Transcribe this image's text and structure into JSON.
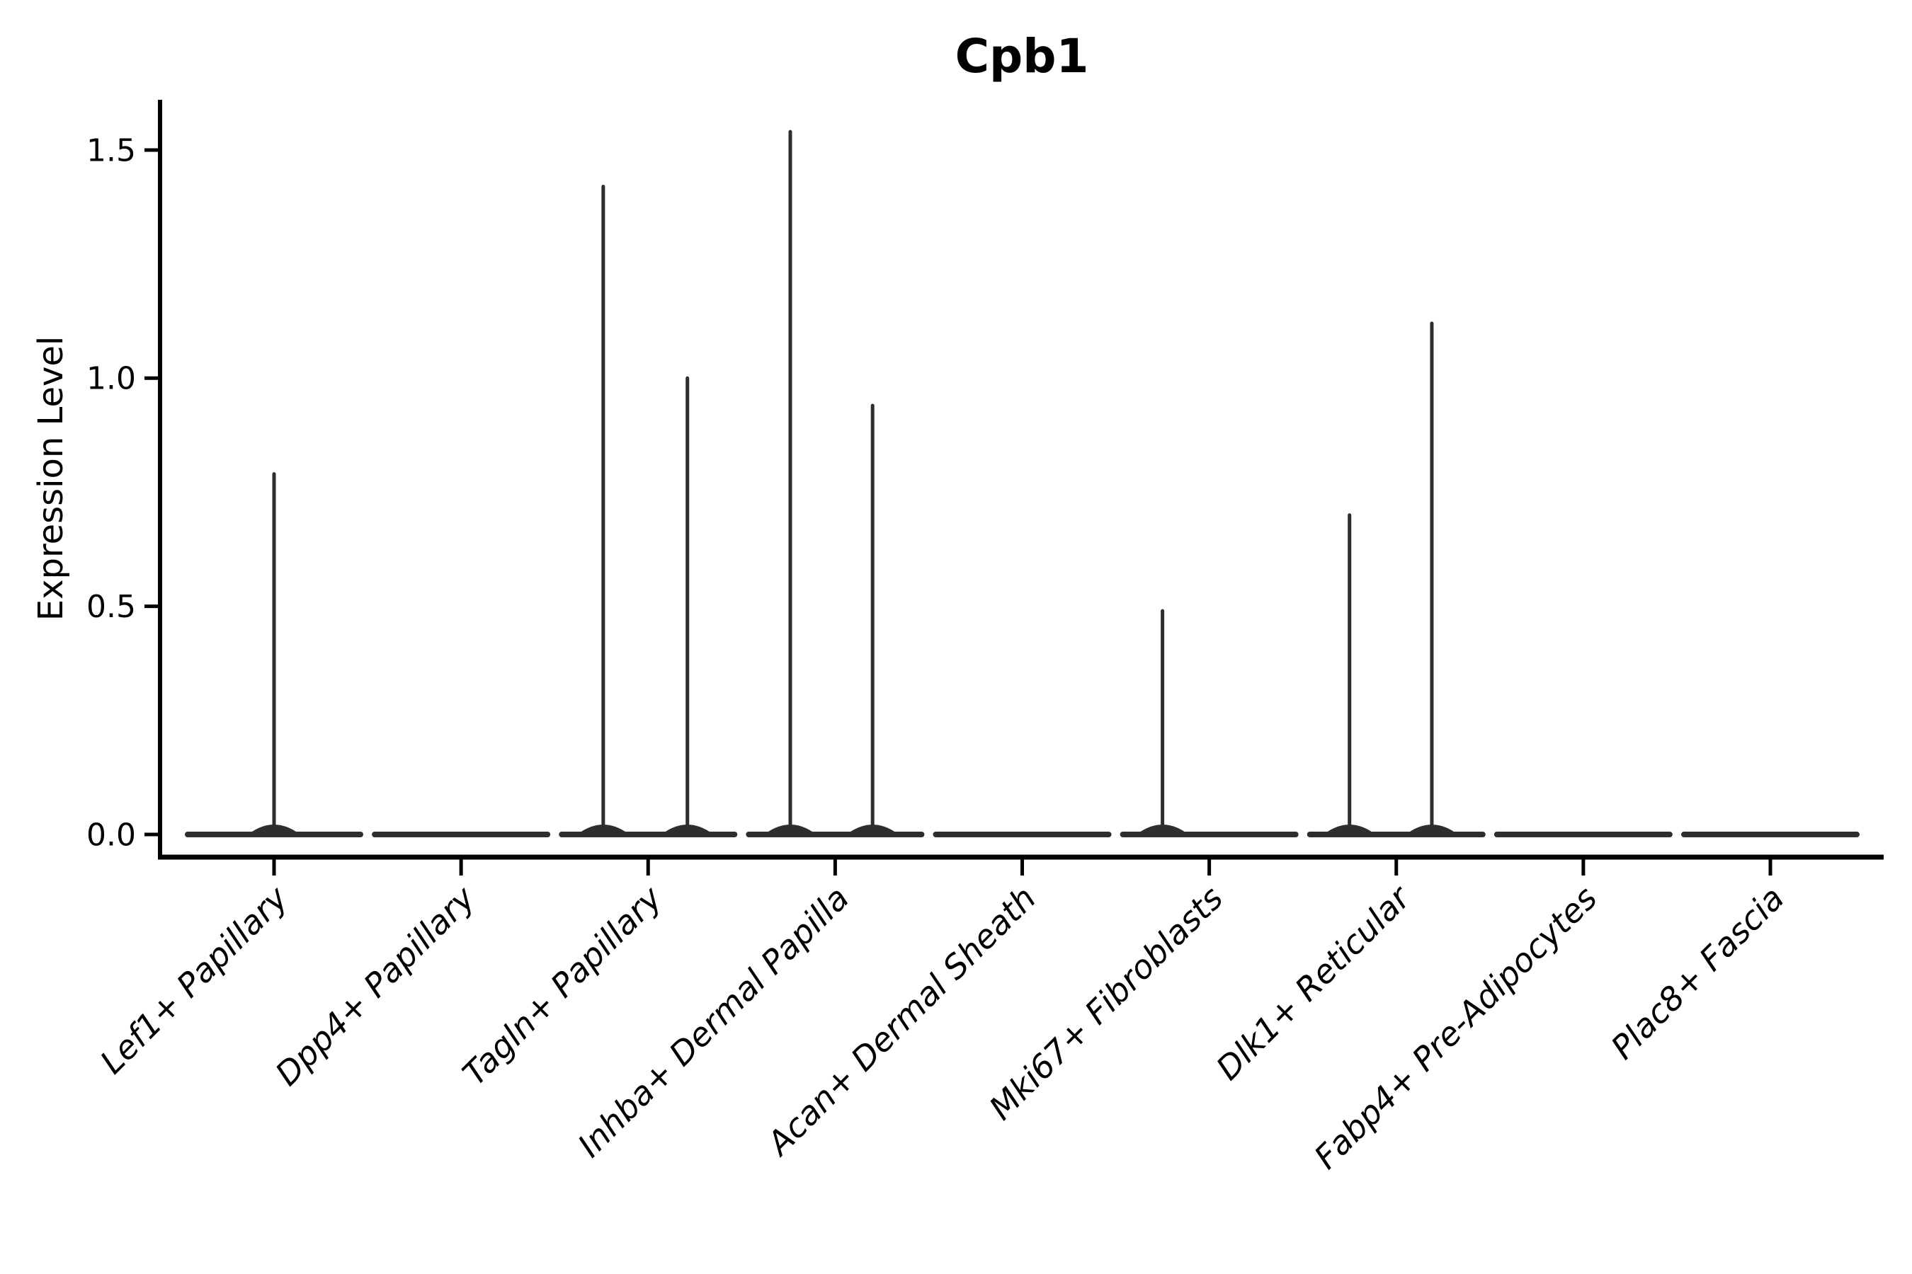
{
  "chart_data": {
    "type": "violin",
    "title": "Cpb1",
    "xlabel": "",
    "ylabel": "Expression Level",
    "grid": false,
    "legend": "none",
    "x_tick_rotation": 45,
    "ylim": [
      -0.05,
      1.61
    ],
    "yticks": [
      {
        "label": "0.0",
        "value": 0.0
      },
      {
        "label": "0.5",
        "value": 0.5
      },
      {
        "label": "1.0",
        "value": 1.0
      },
      {
        "label": "1.5",
        "value": 1.5
      }
    ],
    "categories": [
      "Lef1+ Papillary",
      "Dpp4+ Papillary",
      "Tagln+ Papillary",
      "Inhba+ Dermal Papilla",
      "Acan+ Dermal Sheath",
      "Mki67+ Fibroblasts",
      "Dlk1+ Reticular",
      "Fabp4+ Pre-Adipocytes",
      "Plac8+ Fascia"
    ],
    "violins": [
      {
        "label": "Lef1+ Papillary",
        "base_value": 0.0,
        "max_expression": 0.79,
        "spikes": [
          {
            "value": 0.79,
            "dx": 0.0
          }
        ]
      },
      {
        "label": "Dpp4+ Papillary",
        "base_value": 0.0,
        "max_expression": 0.0,
        "spikes": []
      },
      {
        "label": "Tagln+ Papillary",
        "base_value": 0.0,
        "max_expression": 1.42,
        "spikes": [
          {
            "value": 1.42,
            "dx": -0.24
          },
          {
            "value": 1.0,
            "dx": 0.21
          }
        ]
      },
      {
        "label": "Inhba+ Dermal Papilla",
        "base_value": 0.0,
        "max_expression": 1.54,
        "spikes": [
          {
            "value": 1.54,
            "dx": -0.24
          },
          {
            "value": 0.94,
            "dx": 0.2
          }
        ]
      },
      {
        "label": "Acan+ Dermal Sheath",
        "base_value": 0.0,
        "max_expression": 0.0,
        "spikes": []
      },
      {
        "label": "Mki67+ Fibroblasts",
        "base_value": 0.0,
        "max_expression": 0.49,
        "spikes": [
          {
            "value": 0.49,
            "dx": -0.25
          }
        ]
      },
      {
        "label": "Dlk1+ Reticular",
        "base_value": 0.0,
        "max_expression": 1.12,
        "spikes": [
          {
            "value": 0.7,
            "dx": -0.25
          },
          {
            "value": 1.12,
            "dx": 0.19
          }
        ]
      },
      {
        "label": "Fabp4+ Pre-Adipocytes",
        "base_value": 0.0,
        "max_expression": 0.0,
        "spikes": []
      },
      {
        "label": "Plac8+ Fascia",
        "base_value": 0.0,
        "max_expression": 0.0,
        "spikes": []
      }
    ],
    "colors": {
      "violin": "#2e2e2e",
      "axis": "#000000",
      "text": "#000000",
      "background": "#ffffff"
    }
  }
}
